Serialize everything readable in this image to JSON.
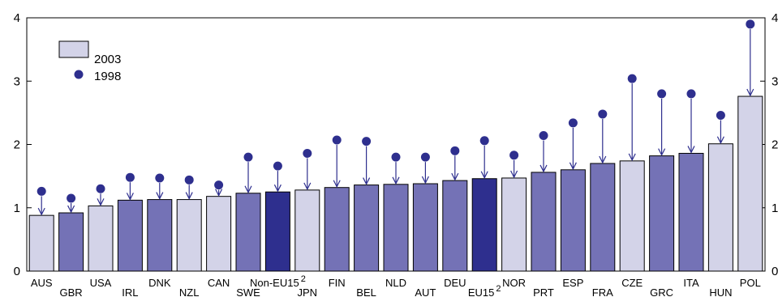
{
  "chart_data": {
    "type": "bar",
    "title": "",
    "xlabel": "",
    "ylabel": "",
    "ylim": [
      0,
      4
    ],
    "yticks": [
      "0",
      "1",
      "2",
      "3",
      "4"
    ],
    "grid": false,
    "legend_placement": "top-left",
    "colors": {
      "light": "#d3d3e8",
      "medium": "#7472b6",
      "dark": "#2e2f8e",
      "marker": "#2e2f8e",
      "outline": "#000000"
    },
    "series": [
      {
        "name": "2003",
        "values": [
          0.88,
          0.92,
          1.03,
          1.12,
          1.13,
          1.13,
          1.18,
          1.23,
          1.25,
          1.28,
          1.32,
          1.36,
          1.37,
          1.38,
          1.43,
          1.46,
          1.47,
          1.56,
          1.6,
          1.7,
          1.74,
          1.82,
          1.86,
          2.01,
          2.76
        ]
      },
      {
        "name": "1998",
        "values": [
          1.26,
          1.15,
          1.3,
          1.48,
          1.47,
          1.44,
          1.36,
          1.8,
          1.66,
          1.86,
          2.07,
          2.05,
          1.8,
          1.8,
          1.9,
          2.06,
          1.83,
          2.14,
          2.34,
          2.48,
          3.04,
          2.8,
          2.8,
          2.46,
          3.9
        ]
      }
    ],
    "categories": [
      "AUS",
      "GBR",
      "USA",
      "IRL",
      "DNK",
      "NZL",
      "CAN",
      "SWE",
      "Non-EU15",
      "JPN",
      "FIN",
      "BEL",
      "NLD",
      "AUT",
      "DEU",
      "EU15",
      "NOR",
      "PRT",
      "ESP",
      "FRA",
      "CZE",
      "GRC",
      "ITA",
      "HUN",
      "POL"
    ],
    "superscripts": [
      "",
      "",
      "",
      "",
      "",
      "",
      "",
      "",
      "2",
      "",
      "",
      "",
      "",
      "",
      "",
      "2",
      "",
      "",
      "",
      "",
      "",
      "",
      "",
      "",
      ""
    ],
    "bar_shade": [
      "light",
      "medium",
      "light",
      "medium",
      "medium",
      "light",
      "light",
      "medium",
      "dark",
      "light",
      "medium",
      "medium",
      "medium",
      "medium",
      "medium",
      "dark",
      "light",
      "medium",
      "medium",
      "medium",
      "light",
      "medium",
      "medium",
      "light",
      "light"
    ]
  }
}
